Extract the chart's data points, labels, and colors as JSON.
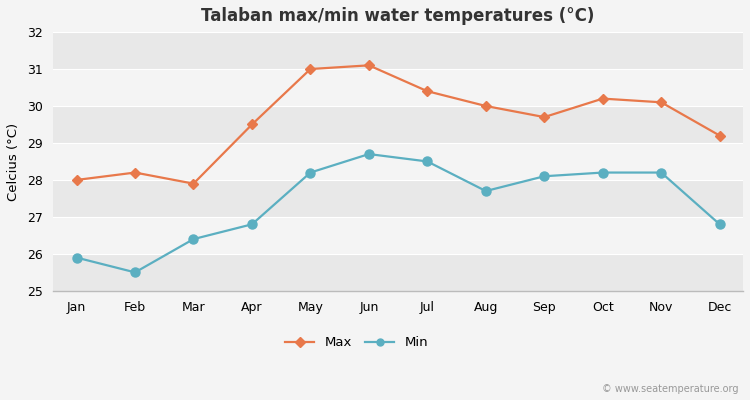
{
  "title": "Talaban max/min water temperatures (°C)",
  "ylabel": "Celcius (°C)",
  "months": [
    "Jan",
    "Feb",
    "Mar",
    "Apr",
    "May",
    "Jun",
    "Jul",
    "Aug",
    "Sep",
    "Oct",
    "Nov",
    "Dec"
  ],
  "max_values": [
    28.0,
    28.2,
    27.9,
    29.5,
    31.0,
    31.1,
    30.4,
    30.0,
    29.7,
    30.2,
    30.1,
    29.2
  ],
  "min_values": [
    25.9,
    25.5,
    26.4,
    26.8,
    28.2,
    28.7,
    28.5,
    27.7,
    28.1,
    28.2,
    28.2,
    26.8
  ],
  "max_color": "#E8784A",
  "min_color": "#5BAFC1",
  "ylim": [
    25.0,
    32.0
  ],
  "yticks": [
    25,
    26,
    27,
    28,
    29,
    30,
    31,
    32
  ],
  "band_colors": [
    "#e8e8e8",
    "#f4f4f4"
  ],
  "outer_bg": "#f4f4f4",
  "legend_max": "Max",
  "legend_min": "Min",
  "watermark": "© www.seatemperature.org"
}
